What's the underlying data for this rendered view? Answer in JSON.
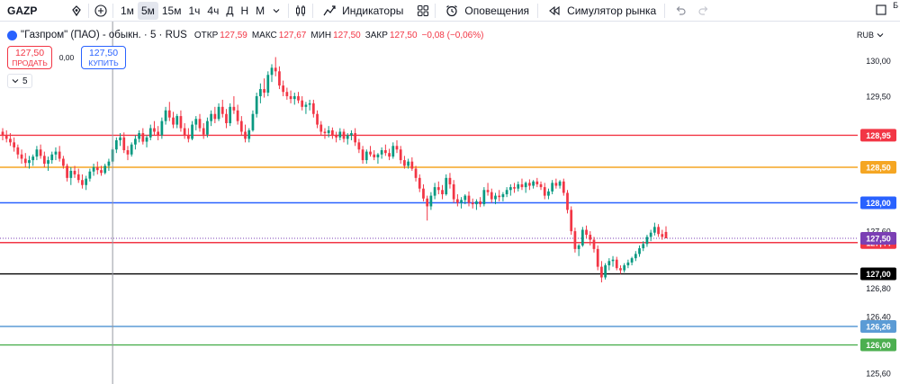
{
  "toolbar": {
    "symbol": "GAZP",
    "timeframes": [
      "1м",
      "5м",
      "15м",
      "1ч",
      "4ч",
      "Д",
      "Н",
      "М"
    ],
    "active_timeframe": "5м",
    "indicators_label": "Индикаторы",
    "alerts_label": "Оповещения",
    "replay_label": "Симулятор рынка",
    "side_letter": "Б"
  },
  "legend": {
    "title": "\"Газпром\" (ПАО) - обыкн. · 5 · RUS",
    "open_label": "ОТКР",
    "open": "127,59",
    "high_label": "МАКС",
    "high": "127,67",
    "low_label": "МИН",
    "low": "127,50",
    "close_label": "ЗАКР",
    "close": "127,50",
    "change": "−0,08 (−0,06%)"
  },
  "trade": {
    "sell_price": "127,50",
    "sell_label": "ПРОДАТЬ",
    "spread": "0,00",
    "buy_price": "127,50",
    "buy_label": "КУПИТЬ"
  },
  "collapse_label": "5",
  "currency": "RUB",
  "colors": {
    "up": "#089981",
    "down": "#f23645",
    "last_price": "#7b3fb4"
  },
  "chart_data": {
    "type": "candlestick",
    "ylim": [
      125.45,
      130.55
    ],
    "y_ticks": [
      "130,00",
      "129,50",
      "127,60",
      "126,80",
      "126,40",
      "125,60"
    ],
    "horizontal_lines": [
      {
        "price": 128.95,
        "label": "128,95",
        "color": "#f23645"
      },
      {
        "price": 128.5,
        "label": "128,50",
        "color": "#f5a623"
      },
      {
        "price": 128.0,
        "label": "128,00",
        "color": "#2962ff"
      },
      {
        "price": 127.44,
        "label": "127,44",
        "color": "#f23645"
      },
      {
        "price": 127.0,
        "label": "127,00",
        "color": "#000000"
      },
      {
        "price": 126.26,
        "label": "126,26",
        "color": "#5b9bd5"
      },
      {
        "price": 126.0,
        "label": "126,00",
        "color": "#4caf50"
      }
    ],
    "last_price": {
      "price": 127.5,
      "label": "127,50"
    },
    "crosshair_bar": 29,
    "candles": [
      [
        129.0,
        129.05,
        128.88,
        128.95
      ],
      [
        128.95,
        129.02,
        128.85,
        128.9
      ],
      [
        128.9,
        128.98,
        128.8,
        128.85
      ],
      [
        128.85,
        128.92,
        128.72,
        128.78
      ],
      [
        128.78,
        128.82,
        128.62,
        128.68
      ],
      [
        128.68,
        128.75,
        128.55,
        128.62
      ],
      [
        128.62,
        128.7,
        128.5,
        128.56
      ],
      [
        128.56,
        128.66,
        128.48,
        128.6
      ],
      [
        128.6,
        128.68,
        128.52,
        128.65
      ],
      [
        128.65,
        128.8,
        128.6,
        128.75
      ],
      [
        128.75,
        128.82,
        128.62,
        128.66
      ],
      [
        128.66,
        128.72,
        128.5,
        128.55
      ],
      [
        128.55,
        128.65,
        128.45,
        128.6
      ],
      [
        128.6,
        128.72,
        128.55,
        128.68
      ],
      [
        128.68,
        128.78,
        128.6,
        128.72
      ],
      [
        128.72,
        128.8,
        128.58,
        128.62
      ],
      [
        128.62,
        128.66,
        128.48,
        128.52
      ],
      [
        128.52,
        128.55,
        128.3,
        128.35
      ],
      [
        128.35,
        128.5,
        128.25,
        128.45
      ],
      [
        128.45,
        128.52,
        128.35,
        128.4
      ],
      [
        128.4,
        128.48,
        128.28,
        128.32
      ],
      [
        128.32,
        128.4,
        128.2,
        128.25
      ],
      [
        128.25,
        128.38,
        128.18,
        128.34
      ],
      [
        128.34,
        128.48,
        128.3,
        128.44
      ],
      [
        128.44,
        128.55,
        128.38,
        128.5
      ],
      [
        128.5,
        128.58,
        128.4,
        128.46
      ],
      [
        128.46,
        128.52,
        128.38,
        128.42
      ],
      [
        128.42,
        128.55,
        128.4,
        128.52
      ],
      [
        128.52,
        128.62,
        128.45,
        128.58
      ],
      [
        128.58,
        128.78,
        128.55,
        128.75
      ],
      [
        128.75,
        128.92,
        128.7,
        128.88
      ],
      [
        128.88,
        128.98,
        128.8,
        128.92
      ],
      [
        128.92,
        128.99,
        128.7,
        128.74
      ],
      [
        128.74,
        128.8,
        128.6,
        128.68
      ],
      [
        128.68,
        128.85,
        128.65,
        128.82
      ],
      [
        128.82,
        128.95,
        128.75,
        128.9
      ],
      [
        128.9,
        129.02,
        128.85,
        128.98
      ],
      [
        128.98,
        129.05,
        128.82,
        128.86
      ],
      [
        128.86,
        128.95,
        128.78,
        128.92
      ],
      [
        128.92,
        129.1,
        128.88,
        129.05
      ],
      [
        129.05,
        129.15,
        128.95,
        129.0
      ],
      [
        129.0,
        129.08,
        128.88,
        128.95
      ],
      [
        128.95,
        129.2,
        128.9,
        129.15
      ],
      [
        129.15,
        129.35,
        129.1,
        129.3
      ],
      [
        129.3,
        129.42,
        129.15,
        129.2
      ],
      [
        129.2,
        129.28,
        129.05,
        129.1
      ],
      [
        129.1,
        129.25,
        129.05,
        129.22
      ],
      [
        129.22,
        129.3,
        129.0,
        129.05
      ],
      [
        129.05,
        129.12,
        128.9,
        128.95
      ],
      [
        128.95,
        129.05,
        128.85,
        128.9
      ],
      [
        128.9,
        129.15,
        128.88,
        129.1
      ],
      [
        129.1,
        129.22,
        129.02,
        129.18
      ],
      [
        129.18,
        129.25,
        129.0,
        129.05
      ],
      [
        129.05,
        129.12,
        128.9,
        128.96
      ],
      [
        128.96,
        129.2,
        128.92,
        129.15
      ],
      [
        129.15,
        129.3,
        129.08,
        129.25
      ],
      [
        129.25,
        129.35,
        129.12,
        129.18
      ],
      [
        129.18,
        129.4,
        129.15,
        129.35
      ],
      [
        129.35,
        129.45,
        129.2,
        129.25
      ],
      [
        129.25,
        129.32,
        129.05,
        129.12
      ],
      [
        129.12,
        129.4,
        129.08,
        129.35
      ],
      [
        129.35,
        129.5,
        129.25,
        129.3
      ],
      [
        129.3,
        129.38,
        129.1,
        129.15
      ],
      [
        129.15,
        129.22,
        128.95,
        129.0
      ],
      [
        129.0,
        129.1,
        128.85,
        128.9
      ],
      [
        128.9,
        129.05,
        128.85,
        129.02
      ],
      [
        129.02,
        129.3,
        129.0,
        129.25
      ],
      [
        129.25,
        129.55,
        129.2,
        129.5
      ],
      [
        129.5,
        129.68,
        129.4,
        129.6
      ],
      [
        129.6,
        129.75,
        129.48,
        129.55
      ],
      [
        129.55,
        129.85,
        129.5,
        129.8
      ],
      [
        129.8,
        129.95,
        129.7,
        129.9
      ],
      [
        129.9,
        130.05,
        129.78,
        129.85
      ],
      [
        129.85,
        129.92,
        129.6,
        129.65
      ],
      [
        129.65,
        129.72,
        129.5,
        129.56
      ],
      [
        129.56,
        129.62,
        129.45,
        129.5
      ],
      [
        129.5,
        129.58,
        129.4,
        129.46
      ],
      [
        129.46,
        129.55,
        129.38,
        129.5
      ],
      [
        129.5,
        129.56,
        129.4,
        129.44
      ],
      [
        129.44,
        129.5,
        129.3,
        129.35
      ],
      [
        129.35,
        129.42,
        129.25,
        129.38
      ],
      [
        129.38,
        129.45,
        129.3,
        129.4
      ],
      [
        129.4,
        129.45,
        129.2,
        129.25
      ],
      [
        129.25,
        129.3,
        129.05,
        129.1
      ],
      [
        129.1,
        129.15,
        128.95,
        129.0
      ],
      [
        129.0,
        129.05,
        128.9,
        128.98
      ],
      [
        128.98,
        129.08,
        128.92,
        129.02
      ],
      [
        129.02,
        129.06,
        128.9,
        128.95
      ],
      [
        128.95,
        129.0,
        128.85,
        128.92
      ],
      [
        128.92,
        129.05,
        128.88,
        129.0
      ],
      [
        129.0,
        129.04,
        128.85,
        128.9
      ],
      [
        128.9,
        128.98,
        128.82,
        128.95
      ],
      [
        128.95,
        129.02,
        128.88,
        128.98
      ],
      [
        128.98,
        129.05,
        128.8,
        128.85
      ],
      [
        128.85,
        128.9,
        128.7,
        128.75
      ],
      [
        128.75,
        128.8,
        128.55,
        128.6
      ],
      [
        128.6,
        128.75,
        128.55,
        128.72
      ],
      [
        128.72,
        128.8,
        128.65,
        128.68
      ],
      [
        128.68,
        128.74,
        128.6,
        128.64
      ],
      [
        128.64,
        128.7,
        128.55,
        128.68
      ],
      [
        128.68,
        128.78,
        128.62,
        128.74
      ],
      [
        128.74,
        128.82,
        128.66,
        128.7
      ],
      [
        128.7,
        128.76,
        128.6,
        128.65
      ],
      [
        128.65,
        128.85,
        128.62,
        128.8
      ],
      [
        128.8,
        128.88,
        128.7,
        128.75
      ],
      [
        128.75,
        128.8,
        128.55,
        128.6
      ],
      [
        128.6,
        128.66,
        128.48,
        128.52
      ],
      [
        128.52,
        128.62,
        128.48,
        128.58
      ],
      [
        128.58,
        128.64,
        128.45,
        128.48
      ],
      [
        128.48,
        128.52,
        128.3,
        128.35
      ],
      [
        128.35,
        128.4,
        128.15,
        128.2
      ],
      [
        128.2,
        128.26,
        128.02,
        128.06
      ],
      [
        128.06,
        128.1,
        127.75,
        127.95
      ],
      [
        127.95,
        128.15,
        127.9,
        128.1
      ],
      [
        128.1,
        128.28,
        128.05,
        128.22
      ],
      [
        128.22,
        128.3,
        128.12,
        128.18
      ],
      [
        128.18,
        128.25,
        128.05,
        128.12
      ],
      [
        128.12,
        128.4,
        128.1,
        128.35
      ],
      [
        128.35,
        128.42,
        128.2,
        128.26
      ],
      [
        128.26,
        128.32,
        128.0,
        128.05
      ],
      [
        128.05,
        128.12,
        127.95,
        128.0
      ],
      [
        128.0,
        128.08,
        127.92,
        128.04
      ],
      [
        128.04,
        128.12,
        127.98,
        128.1
      ],
      [
        128.1,
        128.16,
        127.95,
        128.0
      ],
      [
        128.0,
        128.06,
        127.92,
        127.98
      ],
      [
        127.98,
        128.05,
        127.9,
        128.02
      ],
      [
        128.02,
        128.08,
        127.94,
        127.98
      ],
      [
        127.98,
        128.22,
        127.95,
        128.18
      ],
      [
        128.18,
        128.28,
        128.1,
        128.15
      ],
      [
        128.15,
        128.2,
        128.0,
        128.05
      ],
      [
        128.05,
        128.14,
        127.98,
        128.1
      ],
      [
        128.1,
        128.18,
        128.02,
        128.08
      ],
      [
        128.08,
        128.15,
        128.02,
        128.12
      ],
      [
        128.12,
        128.22,
        128.08,
        128.18
      ],
      [
        128.18,
        128.26,
        128.1,
        128.22
      ],
      [
        128.22,
        128.28,
        128.14,
        128.2
      ],
      [
        128.2,
        128.3,
        128.16,
        128.26
      ],
      [
        128.26,
        128.34,
        128.18,
        128.22
      ],
      [
        128.22,
        128.3,
        128.14,
        128.28
      ],
      [
        128.28,
        128.33,
        128.18,
        128.24
      ],
      [
        128.24,
        128.32,
        128.2,
        128.3
      ],
      [
        128.3,
        128.35,
        128.22,
        128.26
      ],
      [
        128.26,
        128.3,
        128.18,
        128.22
      ],
      [
        128.22,
        128.28,
        128.05,
        128.1
      ],
      [
        128.1,
        128.2,
        128.05,
        128.16
      ],
      [
        128.16,
        128.32,
        128.12,
        128.28
      ],
      [
        128.28,
        128.34,
        128.2,
        128.24
      ],
      [
        128.24,
        128.32,
        128.2,
        128.3
      ],
      [
        128.3,
        128.34,
        128.1,
        128.14
      ],
      [
        128.14,
        128.18,
        127.85,
        127.9
      ],
      [
        127.9,
        127.95,
        127.55,
        127.6
      ],
      [
        127.6,
        127.65,
        127.3,
        127.35
      ],
      [
        127.35,
        127.42,
        127.25,
        127.4
      ],
      [
        127.4,
        127.66,
        127.38,
        127.62
      ],
      [
        127.62,
        127.68,
        127.5,
        127.55
      ],
      [
        127.55,
        127.6,
        127.4,
        127.48
      ],
      [
        127.48,
        127.52,
        127.3,
        127.35
      ],
      [
        127.35,
        127.4,
        127.05,
        127.1
      ],
      [
        127.1,
        127.18,
        126.88,
        126.95
      ],
      [
        126.95,
        127.15,
        126.92,
        127.12
      ],
      [
        127.12,
        127.22,
        127.05,
        127.18
      ],
      [
        127.18,
        127.25,
        127.1,
        127.2
      ],
      [
        127.2,
        127.24,
        127.05,
        127.08
      ],
      [
        127.08,
        127.12,
        127.0,
        127.05
      ],
      [
        127.05,
        127.15,
        127.02,
        127.12
      ],
      [
        127.12,
        127.2,
        127.08,
        127.16
      ],
      [
        127.16,
        127.24,
        127.12,
        127.22
      ],
      [
        127.22,
        127.32,
        127.18,
        127.28
      ],
      [
        127.28,
        127.4,
        127.24,
        127.36
      ],
      [
        127.36,
        127.46,
        127.32,
        127.42
      ],
      [
        127.42,
        127.55,
        127.38,
        127.52
      ],
      [
        127.52,
        127.62,
        127.46,
        127.58
      ],
      [
        127.58,
        127.72,
        127.54,
        127.66
      ],
      [
        127.66,
        127.7,
        127.52,
        127.56
      ],
      [
        127.56,
        127.62,
        127.48,
        127.52
      ],
      [
        127.59,
        127.67,
        127.5,
        127.5
      ]
    ]
  }
}
